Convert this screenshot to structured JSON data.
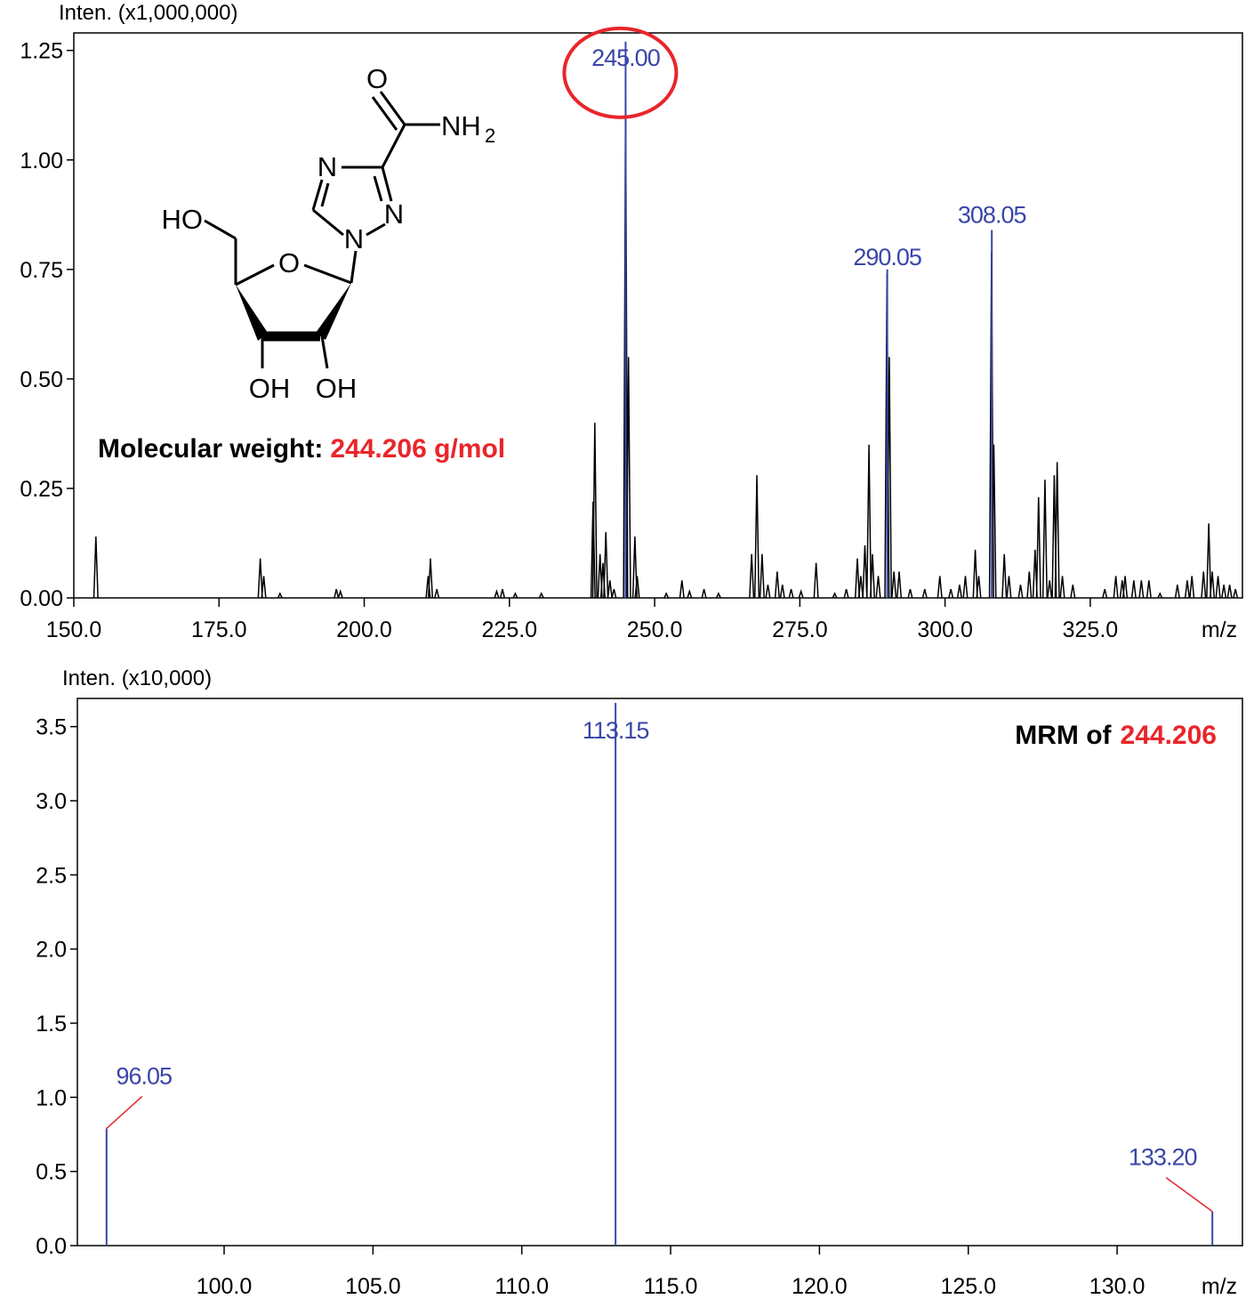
{
  "chart_data": [
    {
      "type": "spectrum",
      "y_label": "Inten. (x1,000,000)",
      "x_label": "m/z",
      "xlim": [
        150,
        351.2
      ],
      "ylim": [
        0,
        1.29
      ],
      "xticks": [
        {
          "value": 150,
          "label": "150.0"
        },
        {
          "value": 175,
          "label": "175.0"
        },
        {
          "value": 200,
          "label": "200.0"
        },
        {
          "value": 225,
          "label": "225.0"
        },
        {
          "value": 250,
          "label": "250.0"
        },
        {
          "value": 275,
          "label": "275.0"
        },
        {
          "value": 300,
          "label": "300.0"
        },
        {
          "value": 325,
          "label": "325.0"
        }
      ],
      "yticks": [
        {
          "value": 0,
          "label": "0.00"
        },
        0.25,
        {
          "value": 0.5,
          "label": "0.50"
        },
        0.75,
        {
          "value": 1,
          "label": "1.00"
        },
        1.25
      ],
      "profile": {
        "color": "#000000",
        "x": [
          153.8,
          182.1,
          182.7,
          185.5,
          195.2,
          195.9,
          211.0,
          211.4,
          212.5,
          222.8,
          223.8,
          226.0,
          230.5,
          239.4,
          239.7,
          240.6,
          241.1,
          241.6,
          242.3,
          243.0,
          245.0,
          245.5,
          246.6,
          247.0,
          252.0,
          254.7,
          256.0,
          258.5,
          261.0,
          266.7,
          267.6,
          268.5,
          269.5,
          271.1,
          272.0,
          273.5,
          275.2,
          277.8,
          281.0,
          283.0,
          284.9,
          285.5,
          286.2,
          286.9,
          287.5,
          288.5,
          290.0,
          290.4,
          291.2,
          292.1,
          294.0,
          296.5,
          299.1,
          301.0,
          302.5,
          303.5,
          305.2,
          305.8,
          308.0,
          308.4,
          310.2,
          311.0,
          313.0,
          314.5,
          315.5,
          316.1,
          317.2,
          318.0,
          318.8,
          319.3,
          320.2,
          322.0,
          327.5,
          329.4,
          330.5,
          331.0,
          332.5,
          333.8,
          335.1,
          337.0,
          340.0,
          341.7,
          342.5,
          344.5,
          345.4,
          346.0,
          347.0,
          348.0,
          349.0,
          350.0
        ],
        "values": [
          0.14,
          0.09,
          0.05,
          0.01,
          0.02,
          0.015,
          0.05,
          0.09,
          0.02,
          0.015,
          0.02,
          0.01,
          0.01,
          0.22,
          0.4,
          0.1,
          0.08,
          0.15,
          0.04,
          0.02,
          1.15,
          0.55,
          0.14,
          0.05,
          0.01,
          0.04,
          0.015,
          0.02,
          0.01,
          0.1,
          0.28,
          0.1,
          0.03,
          0.06,
          0.03,
          0.02,
          0.015,
          0.08,
          0.01,
          0.02,
          0.09,
          0.05,
          0.12,
          0.35,
          0.1,
          0.05,
          0.74,
          0.55,
          0.06,
          0.06,
          0.02,
          0.02,
          0.05,
          0.02,
          0.03,
          0.05,
          0.11,
          0.05,
          0.79,
          0.35,
          0.1,
          0.05,
          0.03,
          0.06,
          0.11,
          0.23,
          0.27,
          0.04,
          0.28,
          0.31,
          0.05,
          0.03,
          0.02,
          0.05,
          0.04,
          0.05,
          0.04,
          0.04,
          0.04,
          0.01,
          0.03,
          0.04,
          0.05,
          0.06,
          0.17,
          0.06,
          0.05,
          0.03,
          0.03,
          0.02
        ]
      },
      "peaks": {
        "color": "#3a46a8",
        "x": [
          245.0,
          290.05,
          308.05
        ],
        "values": [
          1.27,
          0.75,
          0.84
        ],
        "labels": [
          "245.00",
          "290.05",
          "308.05"
        ]
      },
      "annotation": [
        "Molecular weight:",
        "244.206 g/mol"
      ]
    },
    {
      "type": "spectrum",
      "y_label": "Inten. (x10,000)",
      "x_label": "m/z",
      "xlim": [
        95.07,
        134.21
      ],
      "ylim": [
        0,
        3.69
      ],
      "xticks": [
        {
          "value": 100,
          "label": "100.0"
        },
        {
          "value": 105,
          "label": "105.0"
        },
        {
          "value": 110,
          "label": "110.0"
        },
        {
          "value": 115,
          "label": "115.0"
        },
        {
          "value": 120,
          "label": "120.0"
        },
        {
          "value": 125,
          "label": "125.0"
        },
        {
          "value": 130,
          "label": "130.0"
        }
      ],
      "yticks": [
        {
          "value": 0,
          "label": "0.0"
        },
        0.5,
        {
          "value": 1,
          "label": "1.0"
        },
        1.5,
        {
          "value": 2,
          "label": "2.0"
        },
        2.5,
        {
          "value": 3,
          "label": "3.0"
        },
        3.5
      ],
      "peaks": {
        "color": "#3a46a8",
        "x": [
          96.05,
          113.15,
          133.2
        ],
        "values": [
          0.79,
          3.66,
          0.23
        ],
        "labels": [
          "96.05",
          "113.15",
          "133.20"
        ]
      },
      "annotation": [
        "MRM of",
        "244.206"
      ]
    }
  ],
  "structure": {
    "atoms": [
      "O",
      "NH",
      "2",
      "N",
      "N",
      "N",
      "HO",
      "O",
      "OH",
      "OH"
    ]
  }
}
